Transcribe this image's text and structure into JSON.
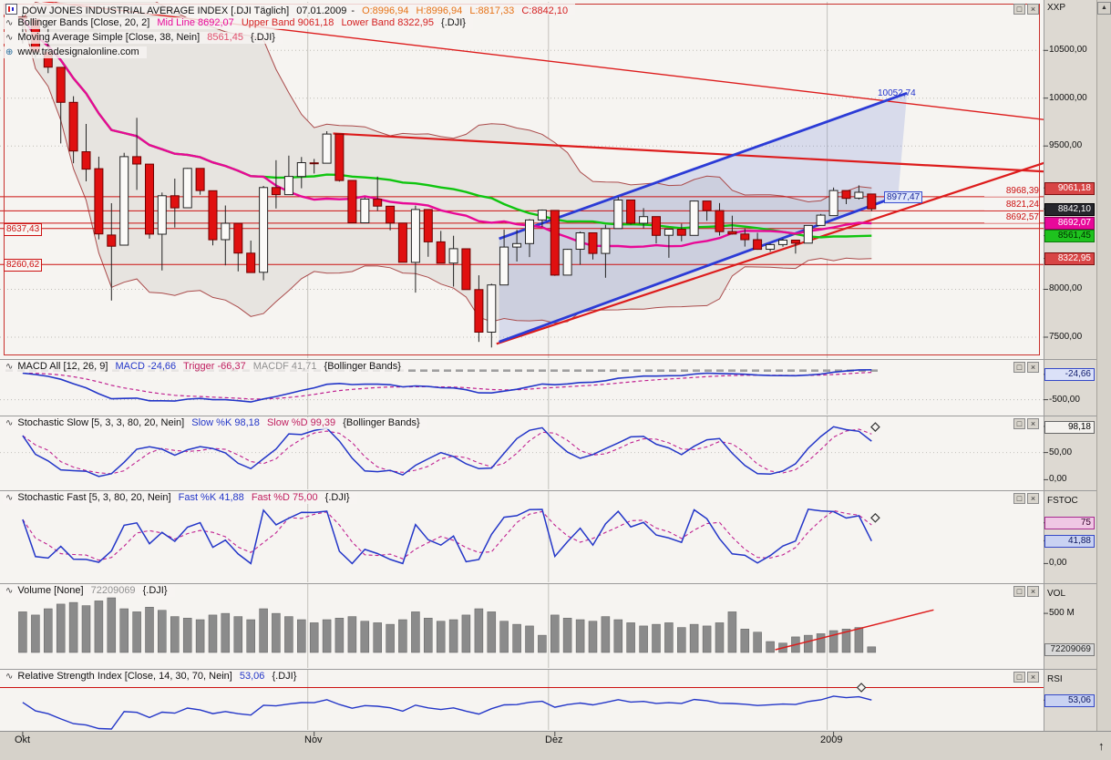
{
  "window": {
    "scale_corner_label": "XXP"
  },
  "icons": {
    "maximize": "□",
    "close": "×",
    "scroll_up": "▲",
    "jump_top": "↑",
    "wave": "∿",
    "globe": "⊕"
  },
  "panels": {
    "main": {
      "header": {
        "title": "DOW JONES INDUSTRIAL AVERAGE INDEX [.DJI Täglich]",
        "date": "07.01.2009",
        "dash": "-",
        "open": "O:8996,94",
        "high": "H:8996,94",
        "low": "L:8817,33",
        "close": "C:8842,10"
      },
      "bollinger_header": {
        "label": "Bollinger Bands [Close, 20, 2]",
        "mid": "Mid Line 8692,07",
        "upper": "Upper Band 9061,18",
        "lower": "Lower Band 8322,95",
        "suffix": "{.DJI}"
      },
      "ma_header": {
        "label": "Moving Average Simple [Close, 38, Nein]",
        "value": "8561,45",
        "suffix": "{.DJI}"
      },
      "watermark": "www.tradesignalonline.com",
      "annotations": {
        "channel_top": "10052,74",
        "channel_bottom": "8977,47"
      }
    },
    "macd": {
      "header": {
        "label": "MACD All [12, 26, 9]",
        "macd": "MACD -24,66",
        "trigger": "Trigger -66,37",
        "macdf": "MACDF 41,71",
        "suffix": "{Bollinger Bands}"
      }
    },
    "stoch_slow": {
      "header": {
        "label": "Stochastic Slow [5, 3, 3, 80, 20, Nein]",
        "k": "Slow %K 98,18",
        "d": "Slow %D 99,39",
        "suffix": "{Bollinger Bands}"
      }
    },
    "stoch_fast": {
      "header": {
        "label": "Stochastic Fast [5, 3, 80, 20, Nein]",
        "k": "Fast %K 41,88",
        "d": "Fast %D 75,00",
        "suffix": "{.DJI}"
      }
    },
    "volume": {
      "header": {
        "label": "Volume [None]",
        "value": "72209069",
        "suffix": "{.DJI}"
      }
    },
    "rsi": {
      "header": {
        "label": "Relative Strength Index [Close, 14, 30, 70, Nein]",
        "value": "53,06",
        "suffix": "{.DJI}"
      }
    }
  },
  "scale": {
    "main": {
      "ticks": [
        {
          "label": "10500,00"
        },
        {
          "label": "10000,00"
        },
        {
          "label": "9500,00"
        },
        {
          "label": "8000,00"
        },
        {
          "label": "7500,00"
        }
      ],
      "tags": [
        {
          "label": "9061,18"
        },
        {
          "label": "8842,10"
        },
        {
          "label": "8692,07"
        },
        {
          "label": "8561,45"
        },
        {
          "label": "8322,95"
        }
      ]
    },
    "macd": {
      "tag": "-24,66",
      "tick": "-500,00"
    },
    "stoch_slow": {
      "tag": "98,18",
      "tick50": "50,00",
      "tick0": "0,00"
    },
    "stoch_fast": {
      "name": "FSTOC",
      "tag_d": "75",
      "tag_k": "41,88",
      "tick0": "0,00"
    },
    "volume": {
      "name": "VOL",
      "tick": "500 M",
      "tag": "72209069"
    },
    "rsi": {
      "name": "RSI",
      "tag": "53,06"
    }
  },
  "chart_data": {
    "type": "candlestick-multi-panel",
    "title": "DOW JONES INDUSTRIAL AVERAGE INDEX [.DJI Täglich]",
    "last_quote": {
      "date": "07.01.2009",
      "open": 8996.94,
      "high": 8996.94,
      "low": 8817.33,
      "close": 8842.1
    },
    "x_count": 68,
    "x_labels": [
      {
        "text": "Okt",
        "i": 0
      },
      {
        "text": "Nov",
        "i": 23
      },
      {
        "text": "Dez",
        "i": 42
      },
      {
        "text": "2009",
        "i": 64
      }
    ],
    "month_boundaries": [
      23,
      42,
      64
    ],
    "price": {
      "ylim": [
        7290,
        10760
      ],
      "yticks": [
        10500,
        10000,
        9500,
        8000,
        7500
      ],
      "tag_values": [
        9061.18,
        8842.1,
        8692.07,
        8561.45,
        8322.95
      ],
      "indicators": {
        "bollinger": {
          "period": 20,
          "mult": 2,
          "mid": 8692.07,
          "upper": 9061.18,
          "lower": 8322.95
        },
        "sma": {
          "period": 38,
          "value": 8561.45
        }
      },
      "hlines": [
        {
          "p": 8968.39,
          "label": "8968,39"
        },
        {
          "p": 8821.24,
          "label": "8821,24"
        },
        {
          "p": 8692.57,
          "label": "8692,57"
        },
        {
          "p": 8637.43,
          "label": "8637,43"
        },
        {
          "p": 8260.62,
          "label": "8260,62"
        }
      ],
      "trendlines": [
        {
          "i1": 0.5,
          "p1": 11030,
          "i2": 81,
          "p2": 9770,
          "color": "red",
          "w": 1.4
        },
        {
          "i1": 24.5,
          "p1": 9630,
          "i2": 81,
          "p2": 9230,
          "color": "red",
          "w": 2.2
        },
        {
          "i1": 37.4,
          "p1": 7430,
          "i2": 81,
          "p2": 9340,
          "color": "red",
          "w": 2.2
        },
        {
          "i1": 37.6,
          "p1": 8530,
          "i2": 69.8,
          "p2": 10052.74,
          "color": "blue",
          "w": 2.8
        },
        {
          "i1": 37.6,
          "p1": 7450,
          "i2": 69.1,
          "p2": 8977.47,
          "color": "blue",
          "w": 2.8
        }
      ],
      "channel": [
        37.6,
        8530,
        69.8,
        10052.74,
        69.1,
        8977.47,
        37.6,
        7450
      ],
      "ohlc": [
        [
          10847,
          10892,
          10572,
          10831
        ],
        [
          10825,
          10825,
          10423,
          10483
        ],
        [
          10484,
          10797,
          10261,
          10325
        ],
        [
          10322,
          10322,
          9526,
          9956
        ],
        [
          9956,
          10020,
          9320,
          9447
        ],
        [
          9440,
          9730,
          9130,
          9258
        ],
        [
          9262,
          9388,
          8523,
          8579
        ],
        [
          8568,
          8901,
          7883,
          8451
        ],
        [
          8462,
          9428,
          8462,
          9388
        ],
        [
          9388,
          9794,
          9040,
          9311
        ],
        [
          9310,
          9310,
          8530,
          8578
        ],
        [
          8577,
          9013,
          8198,
          8979
        ],
        [
          8979,
          9158,
          8647,
          8852
        ],
        [
          8853,
          9270,
          8853,
          9265
        ],
        [
          9265,
          9265,
          8990,
          9033
        ],
        [
          9032,
          9032,
          8461,
          8519
        ],
        [
          8519,
          8877,
          8251,
          8691
        ],
        [
          8690,
          8690,
          8188,
          8379
        ],
        [
          8379,
          8510,
          8176,
          8176
        ],
        [
          8178,
          9082,
          8095,
          9065
        ],
        [
          9065,
          9351,
          8846,
          8991
        ],
        [
          8990,
          9399,
          8990,
          9181
        ],
        [
          9180,
          9384,
          9057,
          9325
        ],
        [
          9323,
          9364,
          9212,
          9320
        ],
        [
          9320,
          9654,
          9320,
          9625
        ],
        [
          9625,
          9625,
          9127,
          9139
        ],
        [
          9139,
          9139,
          8695,
          8696
        ],
        [
          8696,
          8964,
          8696,
          8944
        ],
        [
          8943,
          9179,
          8819,
          8871
        ],
        [
          8870,
          8870,
          8617,
          8694
        ],
        [
          8693,
          8693,
          8282,
          8283
        ],
        [
          8282,
          8876,
          7966,
          8835
        ],
        [
          8835,
          8835,
          8341,
          8497
        ],
        [
          8497,
          8611,
          8274,
          8274
        ],
        [
          8274,
          8561,
          8029,
          8425
        ],
        [
          8424,
          8424,
          7997,
          7997
        ],
        [
          7997,
          8147,
          7450,
          7552
        ],
        [
          7552,
          8059,
          7392,
          8046
        ],
        [
          8046,
          8626,
          8046,
          8443
        ],
        [
          8443,
          8623,
          8291,
          8479
        ],
        [
          8479,
          8735,
          8338,
          8726
        ],
        [
          8726,
          8835,
          8652,
          8829
        ],
        [
          8826,
          8826,
          8141,
          8149
        ],
        [
          8149,
          8424,
          8149,
          8419
        ],
        [
          8419,
          8605,
          8258,
          8591
        ],
        [
          8591,
          8591,
          8312,
          8376
        ],
        [
          8376,
          8675,
          8121,
          8635
        ],
        [
          8636,
          8967,
          8636,
          8934
        ],
        [
          8934,
          8934,
          8678,
          8691
        ],
        [
          8691,
          8850,
          8638,
          8761
        ],
        [
          8761,
          8761,
          8481,
          8565
        ],
        [
          8565,
          8633,
          8330,
          8629
        ],
        [
          8629,
          8687,
          8503,
          8565
        ],
        [
          8565,
          8930,
          8565,
          8924
        ],
        [
          8924,
          8924,
          8717,
          8824
        ],
        [
          8824,
          8902,
          8563,
          8604
        ],
        [
          8605,
          8770,
          8573,
          8579
        ],
        [
          8579,
          8637,
          8447,
          8520
        ],
        [
          8520,
          8592,
          8414,
          8419
        ],
        [
          8419,
          8478,
          8394,
          8468
        ],
        [
          8468,
          8530,
          8446,
          8515
        ],
        [
          8515,
          8516,
          8374,
          8483
        ],
        [
          8483,
          8668,
          8483,
          8668
        ],
        [
          8668,
          8789,
          8668,
          8776
        ],
        [
          8772,
          9065,
          8772,
          9034
        ],
        [
          9034,
          9034,
          8892,
          8952
        ],
        [
          8954,
          9088,
          8940,
          9015
        ],
        [
          8997,
          8997,
          8817,
          8842
        ]
      ]
    },
    "macd": {
      "params": [
        12,
        26,
        9
      ],
      "value": -24.66,
      "trigger": -66.37,
      "macdf": 41.71,
      "ylim": [
        -780,
        160
      ],
      "yticks": [
        -500
      ]
    },
    "stochastic_slow": {
      "params": [
        5,
        3,
        3,
        80,
        20
      ],
      "k": 98.18,
      "d": 99.39,
      "yticks": [
        0,
        50
      ]
    },
    "stochastic_fast": {
      "params": [
        5,
        3,
        80,
        20
      ],
      "k": 41.88,
      "d": 75.0,
      "yticks": [
        0
      ]
    },
    "volume": {
      "value": 72209069,
      "ytick_m": 500,
      "values_m": [
        520,
        480,
        560,
        620,
        640,
        600,
        660,
        700,
        560,
        520,
        580,
        540,
        460,
        440,
        420,
        480,
        500,
        460,
        420,
        560,
        500,
        460,
        420,
        380,
        420,
        440,
        460,
        400,
        380,
        360,
        420,
        520,
        440,
        400,
        420,
        480,
        560,
        520,
        400,
        360,
        340,
        220,
        480,
        440,
        420,
        400,
        460,
        420,
        380,
        340,
        360,
        380,
        320,
        360,
        340,
        380,
        520,
        300,
        260,
        140,
        120,
        200,
        220,
        240,
        280,
        300,
        320,
        72
      ],
      "trendline": {
        "i1": 59.4,
        "v1": 35,
        "i2": 71.9,
        "v2": 545
      }
    },
    "rsi": {
      "params": [
        14,
        30,
        70
      ],
      "value": 53.06,
      "levels": [
        70
      ]
    },
    "markers": [
      {
        "panel": "price",
        "i": 69.1,
        "v": 8977.47
      },
      {
        "panel": "ss",
        "i": 67.3,
        "v": 97
      },
      {
        "panel": "sf",
        "i": 67.3,
        "v": 84
      },
      {
        "panel": "rsi",
        "i": 66.2,
        "v": 70
      }
    ]
  }
}
